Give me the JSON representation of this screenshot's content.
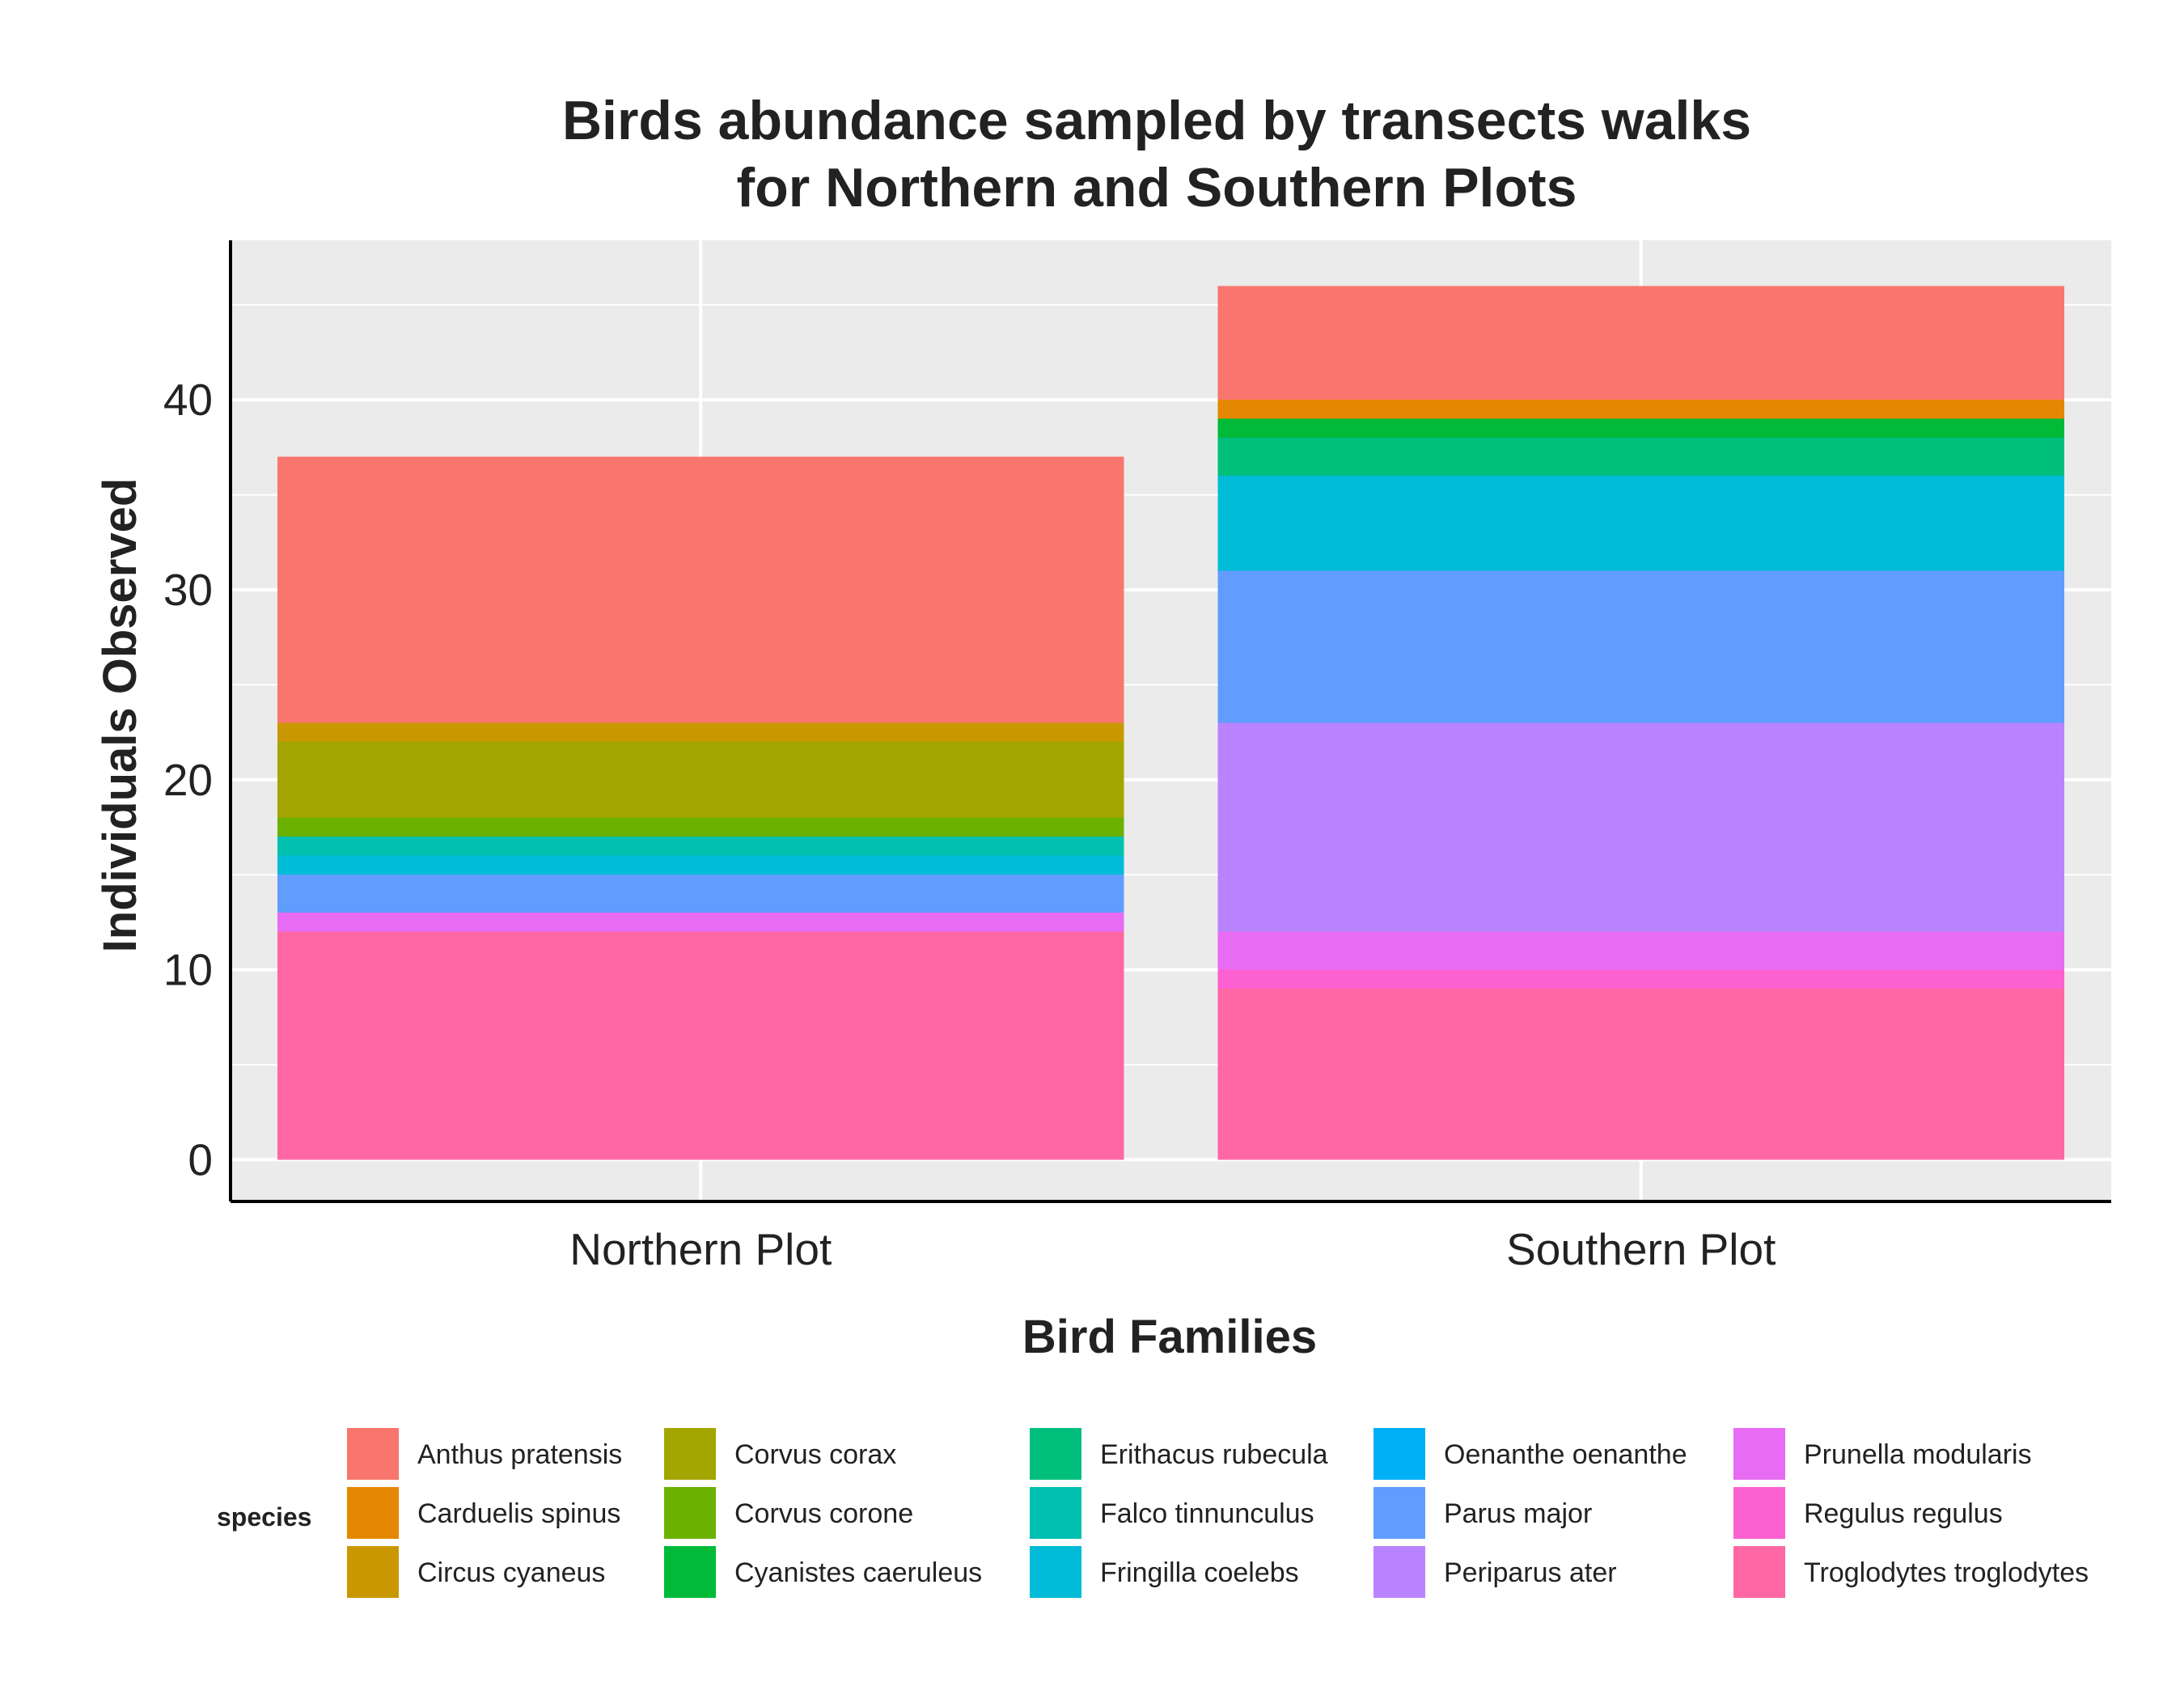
{
  "chart_data": {
    "type": "bar",
    "stacked": true,
    "title_lines": [
      "Birds abundance sampled by transects walks",
      "for Northern and Southern Plots"
    ],
    "xlabel": "Bird Families",
    "ylabel": "Individuals Observed",
    "categories": [
      "Northern Plot",
      "Southern Plot"
    ],
    "ylim": [
      -2.2,
      48.4
    ],
    "yticks": [
      0,
      10,
      20,
      30,
      40
    ],
    "grid": true,
    "legend": {
      "title": "species",
      "position": "bottom",
      "columns": 5,
      "rows": 3
    },
    "series": [
      {
        "name": "Anthus pratensis",
        "color": "#F8766D",
        "values": [
          14,
          6
        ]
      },
      {
        "name": "Carduelis spinus",
        "color": "#E58700",
        "values": [
          0,
          1
        ]
      },
      {
        "name": "Circus cyaneus",
        "color": "#C99800",
        "values": [
          1,
          0
        ]
      },
      {
        "name": "Corvus corax",
        "color": "#A3A500",
        "values": [
          4,
          0
        ]
      },
      {
        "name": "Corvus corone",
        "color": "#6BB100",
        "values": [
          1,
          0
        ]
      },
      {
        "name": "Cyanistes caeruleus",
        "color": "#00BA38",
        "values": [
          0,
          1
        ]
      },
      {
        "name": "Erithacus rubecula",
        "color": "#00BF7D",
        "values": [
          0,
          2
        ]
      },
      {
        "name": "Falco tinnunculus",
        "color": "#00C0AF",
        "values": [
          1,
          0
        ]
      },
      {
        "name": "Fringilla coelebs",
        "color": "#00BCD8",
        "values": [
          1,
          5
        ]
      },
      {
        "name": "Oenanthe oenanthe",
        "color": "#00B0F6",
        "values": [
          0,
          0
        ]
      },
      {
        "name": "Parus major",
        "color": "#619CFF",
        "values": [
          2,
          8
        ]
      },
      {
        "name": "Periparus ater",
        "color": "#B983FF",
        "values": [
          0,
          11
        ]
      },
      {
        "name": "Prunella modularis",
        "color": "#E76BF3",
        "values": [
          1,
          2
        ]
      },
      {
        "name": "Regulus regulus",
        "color": "#FD61D1",
        "values": [
          0,
          1
        ]
      },
      {
        "name": "Troglodytes troglodytes",
        "color": "#FF67A4",
        "values": [
          12,
          9
        ]
      }
    ],
    "colors": {
      "panel_background": "#EBEBEB",
      "grid_line": "#FFFFFF",
      "axis_line": "#000000",
      "text": "#222222"
    }
  }
}
